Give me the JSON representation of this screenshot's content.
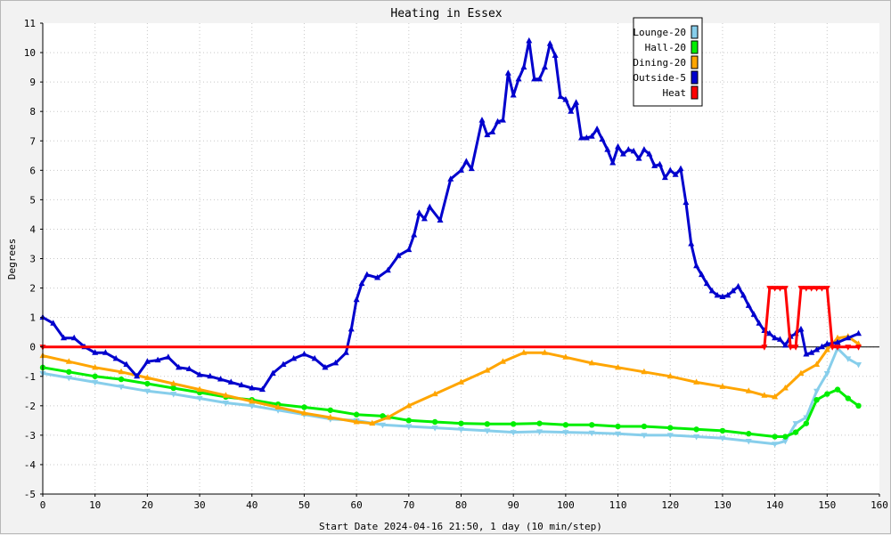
{
  "chart_data": {
    "type": "line",
    "title": "Heating in Essex",
    "xlabel": "Start Date 2024-04-16 21:50, 1 day (10 min/step)",
    "ylabel": "Degrees",
    "xlim": [
      0,
      160
    ],
    "ylim": [
      -5,
      11
    ],
    "x_ticks": [
      0,
      10,
      20,
      30,
      40,
      50,
      60,
      70,
      80,
      90,
      100,
      110,
      120,
      130,
      140,
      150,
      160
    ],
    "y_ticks": [
      -5,
      -4,
      -3,
      -2,
      -1,
      0,
      1,
      2,
      3,
      4,
      5,
      6,
      7,
      8,
      9,
      10,
      11
    ],
    "grid": true,
    "legend_position": "top-right",
    "series": [
      {
        "name": "Lounge-20",
        "color": "#87ceeb",
        "marker": "triangle-down",
        "points": [
          [
            0,
            -0.9
          ],
          [
            5,
            -1.05
          ],
          [
            10,
            -1.2
          ],
          [
            15,
            -1.35
          ],
          [
            20,
            -1.5
          ],
          [
            25,
            -1.6
          ],
          [
            30,
            -1.75
          ],
          [
            35,
            -1.9
          ],
          [
            40,
            -2.0
          ],
          [
            45,
            -2.15
          ],
          [
            50,
            -2.3
          ],
          [
            55,
            -2.45
          ],
          [
            60,
            -2.5
          ],
          [
            65,
            -2.65
          ],
          [
            70,
            -2.7
          ],
          [
            75,
            -2.75
          ],
          [
            80,
            -2.8
          ],
          [
            85,
            -2.85
          ],
          [
            90,
            -2.9
          ],
          [
            95,
            -2.88
          ],
          [
            100,
            -2.9
          ],
          [
            105,
            -2.92
          ],
          [
            110,
            -2.95
          ],
          [
            115,
            -3.0
          ],
          [
            120,
            -3.0
          ],
          [
            125,
            -3.05
          ],
          [
            130,
            -3.1
          ],
          [
            135,
            -3.2
          ],
          [
            140,
            -3.3
          ],
          [
            142,
            -3.2
          ],
          [
            144,
            -2.6
          ],
          [
            146,
            -2.4
          ],
          [
            148,
            -1.5
          ],
          [
            150,
            -0.9
          ],
          [
            152,
            -0.05
          ],
          [
            154,
            -0.4
          ],
          [
            156,
            -0.6
          ]
        ]
      },
      {
        "name": "Hall-20",
        "color": "#00ee00",
        "marker": "circle",
        "points": [
          [
            0,
            -0.7
          ],
          [
            5,
            -0.85
          ],
          [
            10,
            -1.0
          ],
          [
            15,
            -1.1
          ],
          [
            20,
            -1.25
          ],
          [
            25,
            -1.4
          ],
          [
            30,
            -1.55
          ],
          [
            35,
            -1.7
          ],
          [
            40,
            -1.8
          ],
          [
            45,
            -1.95
          ],
          [
            50,
            -2.05
          ],
          [
            55,
            -2.15
          ],
          [
            60,
            -2.3
          ],
          [
            65,
            -2.35
          ],
          [
            70,
            -2.5
          ],
          [
            75,
            -2.55
          ],
          [
            80,
            -2.6
          ],
          [
            85,
            -2.62
          ],
          [
            90,
            -2.62
          ],
          [
            95,
            -2.6
          ],
          [
            100,
            -2.65
          ],
          [
            105,
            -2.65
          ],
          [
            110,
            -2.7
          ],
          [
            115,
            -2.7
          ],
          [
            120,
            -2.75
          ],
          [
            125,
            -2.8
          ],
          [
            130,
            -2.85
          ],
          [
            135,
            -2.95
          ],
          [
            140,
            -3.05
          ],
          [
            142,
            -3.05
          ],
          [
            144,
            -2.9
          ],
          [
            146,
            -2.6
          ],
          [
            148,
            -1.8
          ],
          [
            150,
            -1.6
          ],
          [
            152,
            -1.45
          ],
          [
            154,
            -1.75
          ],
          [
            156,
            -2.0
          ]
        ]
      },
      {
        "name": "Dining-20",
        "color": "#ffa500",
        "marker": "triangle-up",
        "points": [
          [
            0,
            -0.3
          ],
          [
            5,
            -0.5
          ],
          [
            10,
            -0.7
          ],
          [
            15,
            -0.85
          ],
          [
            20,
            -1.05
          ],
          [
            25,
            -1.25
          ],
          [
            30,
            -1.45
          ],
          [
            35,
            -1.65
          ],
          [
            40,
            -1.85
          ],
          [
            45,
            -2.05
          ],
          [
            50,
            -2.25
          ],
          [
            55,
            -2.4
          ],
          [
            60,
            -2.55
          ],
          [
            63,
            -2.6
          ],
          [
            66,
            -2.4
          ],
          [
            70,
            -2.0
          ],
          [
            75,
            -1.6
          ],
          [
            80,
            -1.2
          ],
          [
            85,
            -0.8
          ],
          [
            88,
            -0.5
          ],
          [
            92,
            -0.2
          ],
          [
            96,
            -0.2
          ],
          [
            100,
            -0.35
          ],
          [
            105,
            -0.55
          ],
          [
            110,
            -0.7
          ],
          [
            115,
            -0.85
          ],
          [
            120,
            -1.0
          ],
          [
            125,
            -1.2
          ],
          [
            130,
            -1.35
          ],
          [
            135,
            -1.5
          ],
          [
            138,
            -1.65
          ],
          [
            140,
            -1.7
          ],
          [
            142,
            -1.4
          ],
          [
            145,
            -0.9
          ],
          [
            148,
            -0.6
          ],
          [
            150,
            -0.1
          ],
          [
            152,
            0.3
          ],
          [
            154,
            0.35
          ],
          [
            156,
            0.1
          ]
        ]
      },
      {
        "name": "Outside-5",
        "color": "#0000cd",
        "marker": "triangle-up",
        "points": [
          [
            0,
            1.0
          ],
          [
            2,
            0.8
          ],
          [
            4,
            0.3
          ],
          [
            6,
            0.3
          ],
          [
            8,
            0.0
          ],
          [
            10,
            -0.2
          ],
          [
            12,
            -0.2
          ],
          [
            14,
            -0.4
          ],
          [
            16,
            -0.6
          ],
          [
            18,
            -1.0
          ],
          [
            20,
            -0.5
          ],
          [
            22,
            -0.45
          ],
          [
            24,
            -0.35
          ],
          [
            26,
            -0.7
          ],
          [
            28,
            -0.75
          ],
          [
            30,
            -0.95
          ],
          [
            32,
            -1.0
          ],
          [
            34,
            -1.1
          ],
          [
            36,
            -1.2
          ],
          [
            38,
            -1.3
          ],
          [
            40,
            -1.4
          ],
          [
            42,
            -1.45
          ],
          [
            44,
            -0.9
          ],
          [
            46,
            -0.6
          ],
          [
            48,
            -0.4
          ],
          [
            50,
            -0.25
          ],
          [
            52,
            -0.4
          ],
          [
            54,
            -0.7
          ],
          [
            56,
            -0.55
          ],
          [
            58,
            -0.2
          ],
          [
            59,
            0.6
          ],
          [
            60,
            1.6
          ],
          [
            61,
            2.15
          ],
          [
            62,
            2.45
          ],
          [
            64,
            2.35
          ],
          [
            66,
            2.6
          ],
          [
            68,
            3.1
          ],
          [
            70,
            3.3
          ],
          [
            71,
            3.8
          ],
          [
            72,
            4.55
          ],
          [
            73,
            4.35
          ],
          [
            74,
            4.75
          ],
          [
            76,
            4.3
          ],
          [
            78,
            5.7
          ],
          [
            80,
            6.0
          ],
          [
            81,
            6.3
          ],
          [
            82,
            6.05
          ],
          [
            84,
            7.7
          ],
          [
            85,
            7.2
          ],
          [
            86,
            7.3
          ],
          [
            87,
            7.65
          ],
          [
            88,
            7.7
          ],
          [
            89,
            9.3
          ],
          [
            90,
            8.55
          ],
          [
            91,
            9.1
          ],
          [
            92,
            9.5
          ],
          [
            93,
            10.4
          ],
          [
            94,
            9.1
          ],
          [
            95,
            9.1
          ],
          [
            96,
            9.5
          ],
          [
            97,
            10.3
          ],
          [
            98,
            9.9
          ],
          [
            99,
            8.5
          ],
          [
            100,
            8.4
          ],
          [
            101,
            8.0
          ],
          [
            102,
            8.3
          ],
          [
            103,
            7.1
          ],
          [
            104,
            7.1
          ],
          [
            105,
            7.15
          ],
          [
            106,
            7.4
          ],
          [
            107,
            7.05
          ],
          [
            108,
            6.7
          ],
          [
            109,
            6.25
          ],
          [
            110,
            6.8
          ],
          [
            111,
            6.55
          ],
          [
            112,
            6.7
          ],
          [
            113,
            6.65
          ],
          [
            114,
            6.4
          ],
          [
            115,
            6.7
          ],
          [
            116,
            6.55
          ],
          [
            117,
            6.15
          ],
          [
            118,
            6.2
          ],
          [
            119,
            5.75
          ],
          [
            120,
            6.0
          ],
          [
            121,
            5.85
          ],
          [
            122,
            6.05
          ],
          [
            123,
            4.9
          ],
          [
            124,
            3.5
          ],
          [
            125,
            2.75
          ],
          [
            126,
            2.45
          ],
          [
            127,
            2.15
          ],
          [
            128,
            1.9
          ],
          [
            129,
            1.75
          ],
          [
            130,
            1.7
          ],
          [
            131,
            1.75
          ],
          [
            132,
            1.9
          ],
          [
            133,
            2.05
          ],
          [
            134,
            1.75
          ],
          [
            135,
            1.4
          ],
          [
            136,
            1.1
          ],
          [
            137,
            0.8
          ],
          [
            138,
            0.55
          ],
          [
            139,
            0.45
          ],
          [
            140,
            0.3
          ],
          [
            141,
            0.25
          ],
          [
            142,
            0.05
          ],
          [
            143,
            0.35
          ],
          [
            144,
            0.45
          ],
          [
            145,
            0.6
          ],
          [
            146,
            -0.25
          ],
          [
            147,
            -0.2
          ],
          [
            148,
            -0.1
          ],
          [
            149,
            0.0
          ],
          [
            150,
            0.1
          ],
          [
            152,
            0.15
          ],
          [
            154,
            0.3
          ],
          [
            156,
            0.45
          ]
        ]
      },
      {
        "name": "Heat",
        "color": "#ff0000",
        "marker": "triangle-down",
        "points": [
          [
            0,
            0
          ],
          [
            138,
            0
          ],
          [
            139,
            2.0
          ],
          [
            140,
            2.0
          ],
          [
            141,
            2.0
          ],
          [
            142,
            2.0
          ],
          [
            143,
            0
          ],
          [
            144,
            0
          ],
          [
            145,
            2.0
          ],
          [
            146,
            2.0
          ],
          [
            147,
            2.0
          ],
          [
            148,
            2.0
          ],
          [
            149,
            2.0
          ],
          [
            150,
            2.0
          ],
          [
            151,
            0
          ],
          [
            152,
            0
          ],
          [
            154,
            0
          ],
          [
            156,
            0
          ]
        ]
      }
    ]
  }
}
